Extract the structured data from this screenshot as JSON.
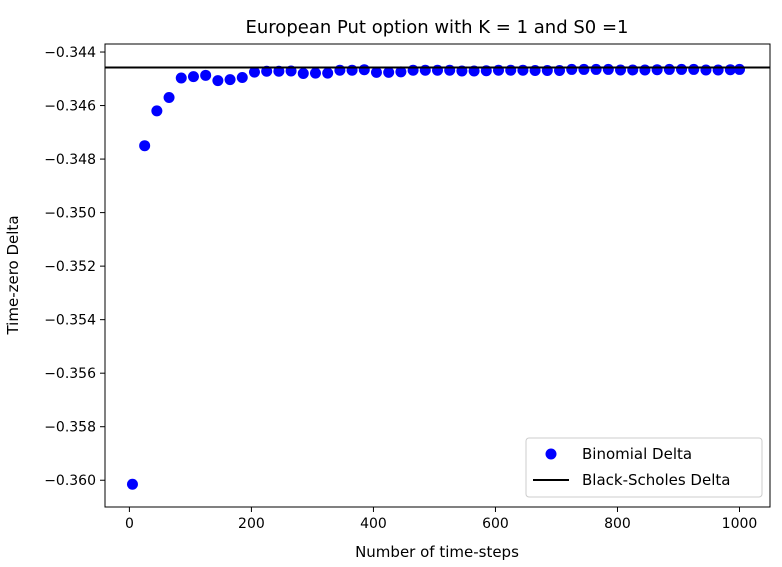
{
  "chart_data": {
    "type": "scatter",
    "title": "European Put option with K = 1 and S0 =1",
    "xlabel": "Number of time-steps",
    "ylabel": "Time-zero Delta",
    "xlim": [
      -40,
      1050
    ],
    "ylim": [
      -0.361,
      -0.3437
    ],
    "xticks": [
      0,
      200,
      400,
      600,
      800,
      1000
    ],
    "yticks": [
      -0.344,
      -0.346,
      -0.348,
      -0.35,
      -0.352,
      -0.354,
      -0.356,
      -0.358,
      -0.36
    ],
    "ytick_labels": [
      "−0.344",
      "−0.346",
      "−0.348",
      "−0.350",
      "−0.352",
      "−0.354",
      "−0.356",
      "−0.358",
      "−0.360"
    ],
    "grid": false,
    "legend_position": "lower-right",
    "series": [
      {
        "name": "Binomial Delta",
        "kind": "scatter",
        "color": "#0000ff",
        "x": [
          5,
          25,
          45,
          65,
          85,
          105,
          125,
          145,
          165,
          185,
          205,
          225,
          245,
          265,
          285,
          305,
          325,
          345,
          365,
          385,
          405,
          425,
          445,
          465,
          485,
          505,
          525,
          545,
          565,
          585,
          605,
          625,
          645,
          665,
          685,
          705,
          725,
          745,
          765,
          785,
          805,
          825,
          845,
          865,
          885,
          905,
          925,
          945,
          965,
          985,
          1000
        ],
        "y": [
          -0.36015,
          -0.3475,
          -0.3462,
          -0.3457,
          -0.34497,
          -0.34492,
          -0.34487,
          -0.34507,
          -0.34503,
          -0.34495,
          -0.34475,
          -0.34472,
          -0.34472,
          -0.34471,
          -0.3448,
          -0.34479,
          -0.34479,
          -0.34468,
          -0.34468,
          -0.34466,
          -0.34476,
          -0.34476,
          -0.34474,
          -0.34468,
          -0.34468,
          -0.34468,
          -0.34468,
          -0.34471,
          -0.34471,
          -0.3447,
          -0.34468,
          -0.34468,
          -0.34468,
          -0.34469,
          -0.34469,
          -0.34469,
          -0.34465,
          -0.34465,
          -0.34465,
          -0.34465,
          -0.34467,
          -0.34467,
          -0.34467,
          -0.34466,
          -0.34465,
          -0.34465,
          -0.34465,
          -0.34467,
          -0.34467,
          -0.34466,
          -0.34465
        ]
      },
      {
        "name": "Black-Scholes Delta",
        "kind": "hline",
        "color": "#000000",
        "y": -0.34458
      }
    ]
  }
}
